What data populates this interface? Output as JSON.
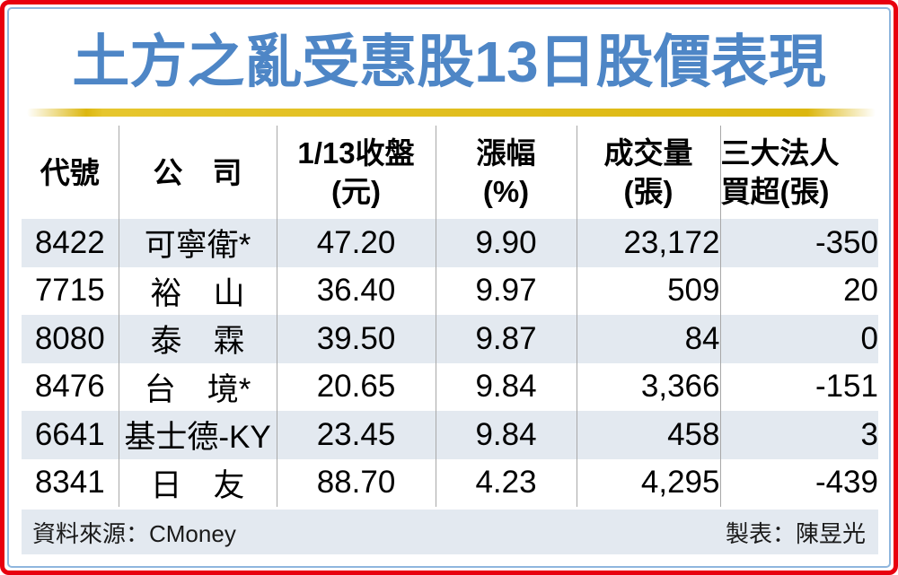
{
  "title": "土方之亂受惠股13日股價表現",
  "colors": {
    "title_blue": "#4E86C6",
    "border_red": "#E8000F",
    "inner_border_blue": "#8FB6DE",
    "gold_bar": "#DCB70F",
    "row_stripe": "#E3E9F0",
    "separator_gray": "#A8A8A8"
  },
  "chart_data": {
    "type": "table",
    "title": "土方之亂受惠股13日股價表現",
    "columns": [
      "代號",
      "公司",
      "1/13收盤(元)",
      "漲幅(%)",
      "成交量(張)",
      "三大法人買超(張)"
    ],
    "rows": [
      [
        "8422",
        "可寧衛*",
        47.2,
        9.9,
        23172,
        -350
      ],
      [
        "7715",
        "裕山",
        36.4,
        9.97,
        509,
        20
      ],
      [
        "8080",
        "泰霖",
        39.5,
        9.87,
        84,
        0
      ],
      [
        "8476",
        "台境*",
        20.65,
        9.84,
        3366,
        -151
      ],
      [
        "6641",
        "基士德-KY",
        23.45,
        9.84,
        458,
        3
      ],
      [
        "8341",
        "日友",
        88.7,
        4.23,
        4295,
        -439
      ]
    ]
  },
  "table": {
    "header": [
      {
        "line1": "代號",
        "line2": ""
      },
      {
        "line1": "公　司",
        "line2": ""
      },
      {
        "line1": "1/13收盤",
        "line2": "(元)"
      },
      {
        "line1": "漲幅",
        "line2": "(%)"
      },
      {
        "line1": "成交量",
        "line2": "(張)"
      },
      {
        "line1": "三大法人",
        "line2": "買超(張)"
      }
    ],
    "rows": [
      [
        "8422",
        "可寧衛*",
        "47.20",
        "9.90",
        "23,172",
        "-350"
      ],
      [
        "7715",
        "裕　山",
        "36.40",
        "9.97",
        "509",
        "20"
      ],
      [
        "8080",
        "泰　霖",
        "39.50",
        "9.87",
        "84",
        "0"
      ],
      [
        "8476",
        "台　境*",
        "20.65",
        "9.84",
        "3,366",
        "-151"
      ],
      [
        "6641",
        "基士德-KY",
        "23.45",
        "9.84",
        "458",
        "3"
      ],
      [
        "8341",
        "日　友",
        "88.70",
        "4.23",
        "4,295",
        "-439"
      ]
    ]
  },
  "footer": {
    "source": "資料來源：CMoney",
    "credit": "製表：陳昱光"
  }
}
